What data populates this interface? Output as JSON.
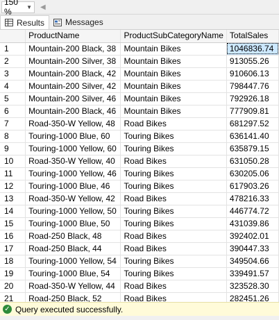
{
  "zoom": {
    "value": "150 %"
  },
  "tabs": [
    {
      "label": "Results",
      "icon": "grid-icon"
    },
    {
      "label": "Messages",
      "icon": "messages-icon"
    }
  ],
  "grid": {
    "columns": [
      "ProductName",
      "ProductSubCategoryName",
      "TotalSales"
    ],
    "rows": [
      [
        "1",
        "Mountain-200 Black, 38",
        "Mountain Bikes",
        "1046836.74"
      ],
      [
        "2",
        "Mountain-200 Silver, 38",
        "Mountain Bikes",
        "913055.26"
      ],
      [
        "3",
        "Mountain-200 Black, 42",
        "Mountain Bikes",
        "910606.13"
      ],
      [
        "4",
        "Mountain-200 Silver, 42",
        "Mountain Bikes",
        "798447.76"
      ],
      [
        "5",
        "Mountain-200 Silver, 46",
        "Mountain Bikes",
        "792926.18"
      ],
      [
        "6",
        "Mountain-200 Black, 46",
        "Mountain Bikes",
        "777909.81"
      ],
      [
        "7",
        "Road-350-W Yellow, 48",
        "Road Bikes",
        "681297.52"
      ],
      [
        "8",
        "Touring-1000 Blue, 60",
        "Touring Bikes",
        "636141.40"
      ],
      [
        "9",
        "Touring-1000 Yellow, 60",
        "Touring Bikes",
        "635879.15"
      ],
      [
        "10",
        "Road-350-W Yellow, 40",
        "Road Bikes",
        "631050.28"
      ],
      [
        "11",
        "Touring-1000 Yellow, 46",
        "Touring Bikes",
        "630205.06"
      ],
      [
        "12",
        "Touring-1000 Blue, 46",
        "Touring Bikes",
        "617903.26"
      ],
      [
        "13",
        "Road-350-W Yellow, 42",
        "Road Bikes",
        "478216.33"
      ],
      [
        "14",
        "Touring-1000 Yellow, 50",
        "Touring Bikes",
        "446774.72"
      ],
      [
        "15",
        "Touring-1000 Blue, 50",
        "Touring Bikes",
        "431039.86"
      ],
      [
        "16",
        "Road-250 Black, 48",
        "Road Bikes",
        "392402.01"
      ],
      [
        "17",
        "Road-250 Black, 44",
        "Road Bikes",
        "390447.33"
      ],
      [
        "18",
        "Touring-1000 Yellow, 54",
        "Touring Bikes",
        "349504.66"
      ],
      [
        "19",
        "Touring-1000 Blue, 54",
        "Touring Bikes",
        "339491.57"
      ],
      [
        "20",
        "Road-350-W Yellow, 44",
        "Road Bikes",
        "323528.30"
      ],
      [
        "21",
        "Road-250 Black, 52",
        "Road Bikes",
        "282451.26"
      ]
    ]
  },
  "status": {
    "text": "Query executed successfully.",
    "icon": "check-circle-icon"
  },
  "colors": {
    "status_bg": "#fffbd9",
    "selected_cell": "#cce8ff",
    "ok_green": "#2e8b3a"
  }
}
